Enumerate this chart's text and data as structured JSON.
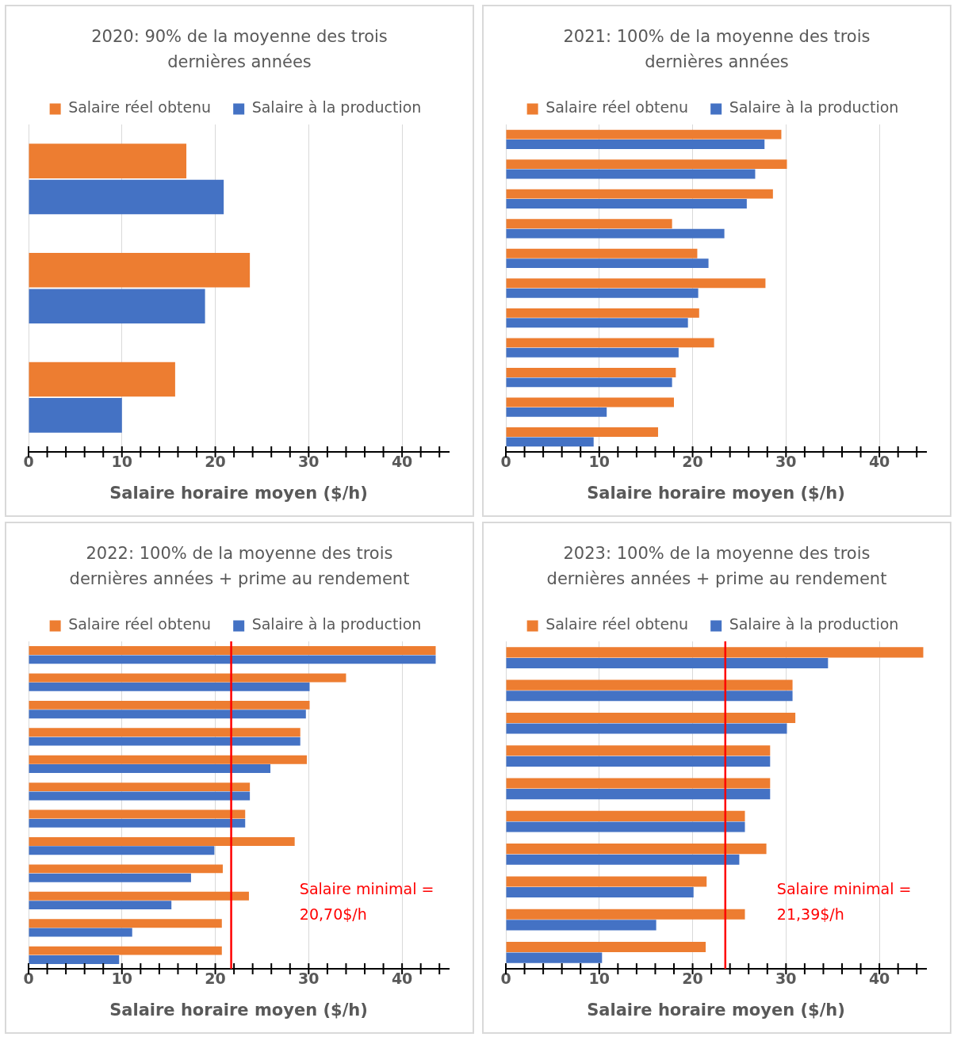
{
  "chart_data": [
    {
      "type": "bar",
      "orientation": "horizontal",
      "title": "2020: 90% de la moyenne des trois dernières années",
      "xlabel": "Salaire horaire moyen ($/h)",
      "categories": [
        null,
        null,
        null
      ],
      "series": [
        {
          "name": "Salaire réel obtenu",
          "color": "#ed7d31",
          "values": [
            16.9,
            23.7,
            15.7
          ]
        },
        {
          "name": "Salaire à la production",
          "color": "#4472c4",
          "values": [
            20.9,
            18.9,
            10.0
          ]
        }
      ],
      "xlim": [
        0,
        45
      ],
      "xticks": [
        0,
        {
          "value": 2,
          "label": null
        },
        {
          "value": 4,
          "label": null
        },
        {
          "value": 6,
          "label": null
        },
        {
          "value": 8,
          "label": null
        },
        10,
        {
          "value": 12,
          "label": null
        },
        {
          "value": 14,
          "label": null
        },
        {
          "value": 16,
          "label": null
        },
        {
          "value": 18,
          "label": null
        },
        20,
        {
          "value": 22,
          "label": null
        },
        {
          "value": 24,
          "label": null
        },
        {
          "value": 26,
          "label": null
        },
        {
          "value": 28,
          "label": null
        },
        30,
        {
          "value": 32,
          "label": null
        },
        {
          "value": 34,
          "label": null
        },
        {
          "value": 36,
          "label": null
        },
        {
          "value": 38,
          "label": null
        },
        40,
        {
          "value": 42,
          "label": null
        },
        {
          "value": 44,
          "label": null
        }
      ],
      "grid": "x",
      "legend": "top",
      "tick_labels": "x"
    },
    {
      "type": "bar",
      "orientation": "horizontal",
      "title": "2021: 100% de la moyenne des trois dernières années",
      "xlabel": "Salaire horaire moyen ($/h)",
      "categories": [
        null,
        null,
        null,
        null,
        null,
        null,
        null,
        null,
        null,
        null,
        null
      ],
      "series": [
        {
          "name": "Salaire réel obtenu",
          "color": "#ed7d31",
          "values": [
            29.5,
            30.1,
            28.6,
            17.8,
            20.5,
            27.8,
            20.7,
            22.3,
            18.2,
            18.0,
            16.3
          ]
        },
        {
          "name": "Salaire à la production",
          "color": "#4472c4",
          "values": [
            27.7,
            26.7,
            25.8,
            23.4,
            21.7,
            20.6,
            19.5,
            18.5,
            17.8,
            10.8,
            9.4
          ]
        }
      ],
      "xlim": [
        0,
        45
      ],
      "xticks": [
        0,
        {
          "value": 2,
          "label": null
        },
        {
          "value": 4,
          "label": null
        },
        {
          "value": 6,
          "label": null
        },
        {
          "value": 8,
          "label": null
        },
        10,
        {
          "value": 12,
          "label": null
        },
        {
          "value": 14,
          "label": null
        },
        {
          "value": 16,
          "label": null
        },
        {
          "value": 18,
          "label": null
        },
        20,
        {
          "value": 22,
          "label": null
        },
        {
          "value": 24,
          "label": null
        },
        {
          "value": 26,
          "label": null
        },
        {
          "value": 28,
          "label": null
        },
        30,
        {
          "value": 32,
          "label": null
        },
        {
          "value": 34,
          "label": null
        },
        {
          "value": 36,
          "label": null
        },
        {
          "value": 38,
          "label": null
        },
        40,
        {
          "value": 42,
          "label": null
        },
        {
          "value": 44,
          "label": null
        }
      ],
      "grid": "x",
      "legend": "top",
      "tick_labels": "x"
    },
    {
      "type": "bar",
      "orientation": "horizontal",
      "title": "2022: 100% de la moyenne des trois dernières années + prime au rendement",
      "xlabel": "Salaire horaire moyen ($/h)",
      "categories": [
        null,
        null,
        null,
        null,
        null,
        null,
        null,
        null,
        null,
        null,
        null,
        null
      ],
      "series": [
        {
          "name": "Salaire réel obtenu",
          "color": "#ed7d31",
          "values": [
            43.6,
            34.0,
            30.1,
            29.1,
            29.8,
            23.7,
            23.2,
            28.5,
            20.8,
            23.6,
            20.7,
            20.7
          ]
        },
        {
          "name": "Salaire à la production",
          "color": "#4472c4",
          "values": [
            43.6,
            30.1,
            29.7,
            29.1,
            25.9,
            23.7,
            23.2,
            19.9,
            17.4,
            15.3,
            11.1,
            9.7
          ]
        }
      ],
      "xlim": [
        0,
        45
      ],
      "xticks": [
        0,
        {
          "value": 2,
          "label": null
        },
        {
          "value": 4,
          "label": null
        },
        {
          "value": 6,
          "label": null
        },
        {
          "value": 8,
          "label": null
        },
        10,
        {
          "value": 12,
          "label": null
        },
        {
          "value": 14,
          "label": null
        },
        {
          "value": 16,
          "label": null
        },
        {
          "value": 18,
          "label": null
        },
        20,
        {
          "value": 22,
          "label": null
        },
        {
          "value": 24,
          "label": null
        },
        {
          "value": 26,
          "label": null
        },
        {
          "value": 28,
          "label": null
        },
        30,
        {
          "value": 32,
          "label": null
        },
        {
          "value": 34,
          "label": null
        },
        {
          "value": 36,
          "label": null
        },
        {
          "value": 38,
          "label": null
        },
        40,
        {
          "value": 42,
          "label": null
        },
        {
          "value": 44,
          "label": null
        }
      ],
      "ref_lines": [
        {
          "axis": "x",
          "value": 21.7,
          "color": "#ff0000"
        }
      ],
      "annotations": [
        "Salaire minimal = 20,70$/h"
      ],
      "grid": "x",
      "legend": "top",
      "tick_labels": "x"
    },
    {
      "type": "bar",
      "orientation": "horizontal",
      "title": "2023: 100% de la moyenne des trois dernières années + prime au rendement",
      "xlabel": "Salaire horaire moyen ($/h)",
      "categories": [
        null,
        null,
        null,
        null,
        null,
        null,
        null,
        null,
        null,
        null
      ],
      "series": [
        {
          "name": "Salaire réel obtenu",
          "color": "#ed7d31",
          "values": [
            44.7,
            30.7,
            31.0,
            28.3,
            28.3,
            25.6,
            27.9,
            21.5,
            25.6,
            21.4
          ]
        },
        {
          "name": "Salaire à la production",
          "color": "#4472c4",
          "values": [
            34.5,
            30.7,
            30.1,
            28.3,
            28.3,
            25.6,
            25.0,
            20.1,
            16.1,
            10.3
          ]
        }
      ],
      "xlim": [
        0,
        45
      ],
      "xticks": [
        0,
        {
          "value": 2,
          "label": null
        },
        {
          "value": 4,
          "label": null
        },
        {
          "value": 6,
          "label": null
        },
        {
          "value": 8,
          "label": null
        },
        10,
        {
          "value": 12,
          "label": null
        },
        {
          "value": 14,
          "label": null
        },
        {
          "value": 16,
          "label": null
        },
        {
          "value": 18,
          "label": null
        },
        20,
        {
          "value": 22,
          "label": null
        },
        {
          "value": 24,
          "label": null
        },
        {
          "value": 26,
          "label": null
        },
        {
          "value": 28,
          "label": null
        },
        30,
        {
          "value": 32,
          "label": null
        },
        {
          "value": 34,
          "label": null
        },
        {
          "value": 36,
          "label": null
        },
        {
          "value": 38,
          "label": null
        },
        40,
        {
          "value": 42,
          "label": null
        },
        {
          "value": 44,
          "label": null
        }
      ],
      "ref_lines": [
        {
          "axis": "x",
          "value": 23.5,
          "color": "#ff0000"
        }
      ],
      "annotations": [
        "Salaire minimal = 21,39$/h"
      ],
      "grid": "x",
      "legend": "top",
      "tick_labels": "x"
    }
  ]
}
